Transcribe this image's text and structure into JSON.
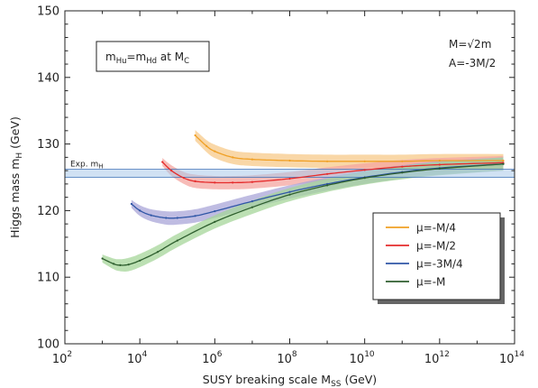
{
  "chart_data": {
    "type": "line",
    "xlabel": "SUSY breaking scale M",
    "xlabel_sub": "SS",
    "xlabel_unit": " (GeV)",
    "ylabel": "Higgs mass m",
    "ylabel_sub": "H",
    "ylabel_unit": " (GeV)",
    "x_scale": "log",
    "xlim": [
      100,
      100000000000000
    ],
    "ylim": [
      100,
      150
    ],
    "x_ticks": [
      {
        "value": 100,
        "base": "10",
        "exp": "2"
      },
      {
        "value": 10000,
        "base": "10",
        "exp": "4"
      },
      {
        "value": 1000000,
        "base": "10",
        "exp": "6"
      },
      {
        "value": 100000000,
        "base": "10",
        "exp": "8"
      },
      {
        "value": 10000000000,
        "base": "10",
        "exp": "10"
      },
      {
        "value": 1000000000000,
        "base": "10",
        "exp": "12"
      },
      {
        "value": 100000000000000,
        "base": "10",
        "exp": "14"
      }
    ],
    "y_ticks": [
      100,
      110,
      120,
      130,
      140,
      150
    ],
    "y_tick_labels": [
      "100",
      "110",
      "120",
      "130",
      "140",
      "150"
    ],
    "experimental_band": {
      "label": "Exp. m",
      "label_sub": "H",
      "low": 125.0,
      "high": 126.2,
      "color": "#a9c8ea",
      "line_color": "#3a6fb5"
    },
    "annotations": {
      "condition": {
        "pre": "m",
        "sub1": "Hu",
        "mid": "=m",
        "sub2": "Hd",
        "post": " at M",
        "sub3": "C"
      },
      "param_M": "M=√2m",
      "param_A": "A=-3M/2"
    },
    "legend_position": "center-right",
    "series": [
      {
        "name": "μ=-M/4",
        "color": "#f0a024",
        "band_color": "#f7c98a",
        "x": [
          300000,
          600000,
          1000000,
          3000000,
          10000000,
          100000000,
          1000000000,
          10000000000,
          100000000000,
          1000000000000,
          50000000000000
        ],
        "y": [
          131.3,
          129.7,
          128.9,
          128.0,
          127.7,
          127.5,
          127.4,
          127.4,
          127.4,
          127.5,
          127.5
        ],
        "err": [
          0.8,
          0.9,
          1.0,
          1.0,
          1.0,
          1.0,
          1.0,
          1.0,
          1.0,
          1.0,
          1.0
        ]
      },
      {
        "name": "μ=-M/2",
        "color": "#e52b2b",
        "band_color": "#f4a5a0",
        "x": [
          40000,
          70000,
          150000,
          300000,
          1000000,
          3000000,
          10000000,
          100000000,
          1000000000,
          10000000000,
          100000000000,
          1000000000000,
          50000000000000
        ],
        "y": [
          127.3,
          126.0,
          124.9,
          124.4,
          124.2,
          124.2,
          124.3,
          124.8,
          125.5,
          126.1,
          126.6,
          126.9,
          127.2
        ],
        "err": [
          0.6,
          0.8,
          0.9,
          1.0,
          1.0,
          1.0,
          1.0,
          1.0,
          1.0,
          1.0,
          1.0,
          1.0,
          1.0
        ]
      },
      {
        "name": "μ=-3M/4",
        "color": "#2f56a6",
        "band_color": "#a9a6d8",
        "x": [
          6000,
          10000,
          20000,
          50000,
          100000,
          300000,
          1000000,
          10000000,
          100000000,
          1000000000,
          10000000000,
          100000000000,
          1000000000000,
          50000000000000
        ],
        "y": [
          121.0,
          120.0,
          119.3,
          118.9,
          118.9,
          119.2,
          119.9,
          121.4,
          122.8,
          124.0,
          125.0,
          125.8,
          126.4,
          127.0
        ],
        "err": [
          0.6,
          0.8,
          0.9,
          1.0,
          1.0,
          1.0,
          1.0,
          1.0,
          1.0,
          1.0,
          1.0,
          1.0,
          1.0,
          1.0
        ]
      },
      {
        "name": "μ=-M",
        "color": "#2e5e2e",
        "band_color": "#a6d59a",
        "x": [
          1000,
          2000,
          3000,
          5000,
          10000,
          30000,
          100000,
          1000000,
          10000000,
          100000000,
          1000000000,
          10000000000,
          100000000000,
          1000000000000,
          50000000000000
        ],
        "y": [
          112.8,
          112.0,
          111.8,
          111.9,
          112.5,
          113.8,
          115.5,
          118.3,
          120.5,
          122.4,
          123.8,
          124.9,
          125.7,
          126.3,
          127.0
        ],
        "err": [
          0.6,
          0.8,
          0.9,
          1.0,
          1.0,
          1.0,
          1.0,
          1.0,
          1.0,
          1.0,
          1.0,
          1.0,
          1.0,
          1.0,
          1.0
        ]
      }
    ]
  }
}
